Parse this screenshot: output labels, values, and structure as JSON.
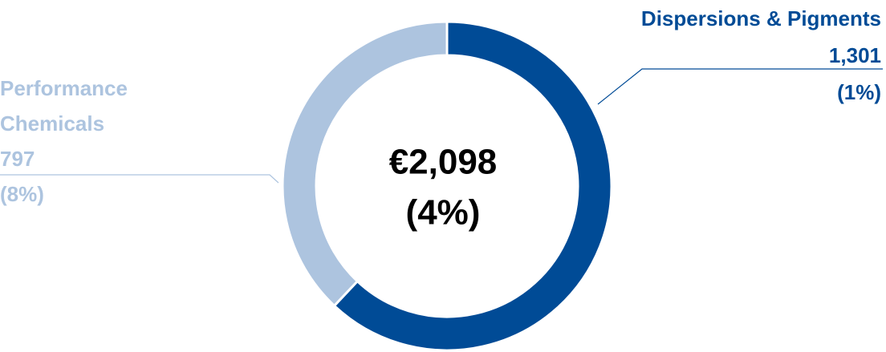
{
  "chart_data": {
    "type": "donut",
    "categories": [
      "Dispersions & Pigments",
      "Performance Chemicals"
    ],
    "values": [
      1301,
      797
    ],
    "value_labels": [
      "1,301",
      "797"
    ],
    "changes": [
      "(1%)",
      "(8%)"
    ],
    "colors": [
      "#004b96",
      "#adc4df"
    ],
    "center_label": "€2,098",
    "center_change": "(4%)"
  }
}
